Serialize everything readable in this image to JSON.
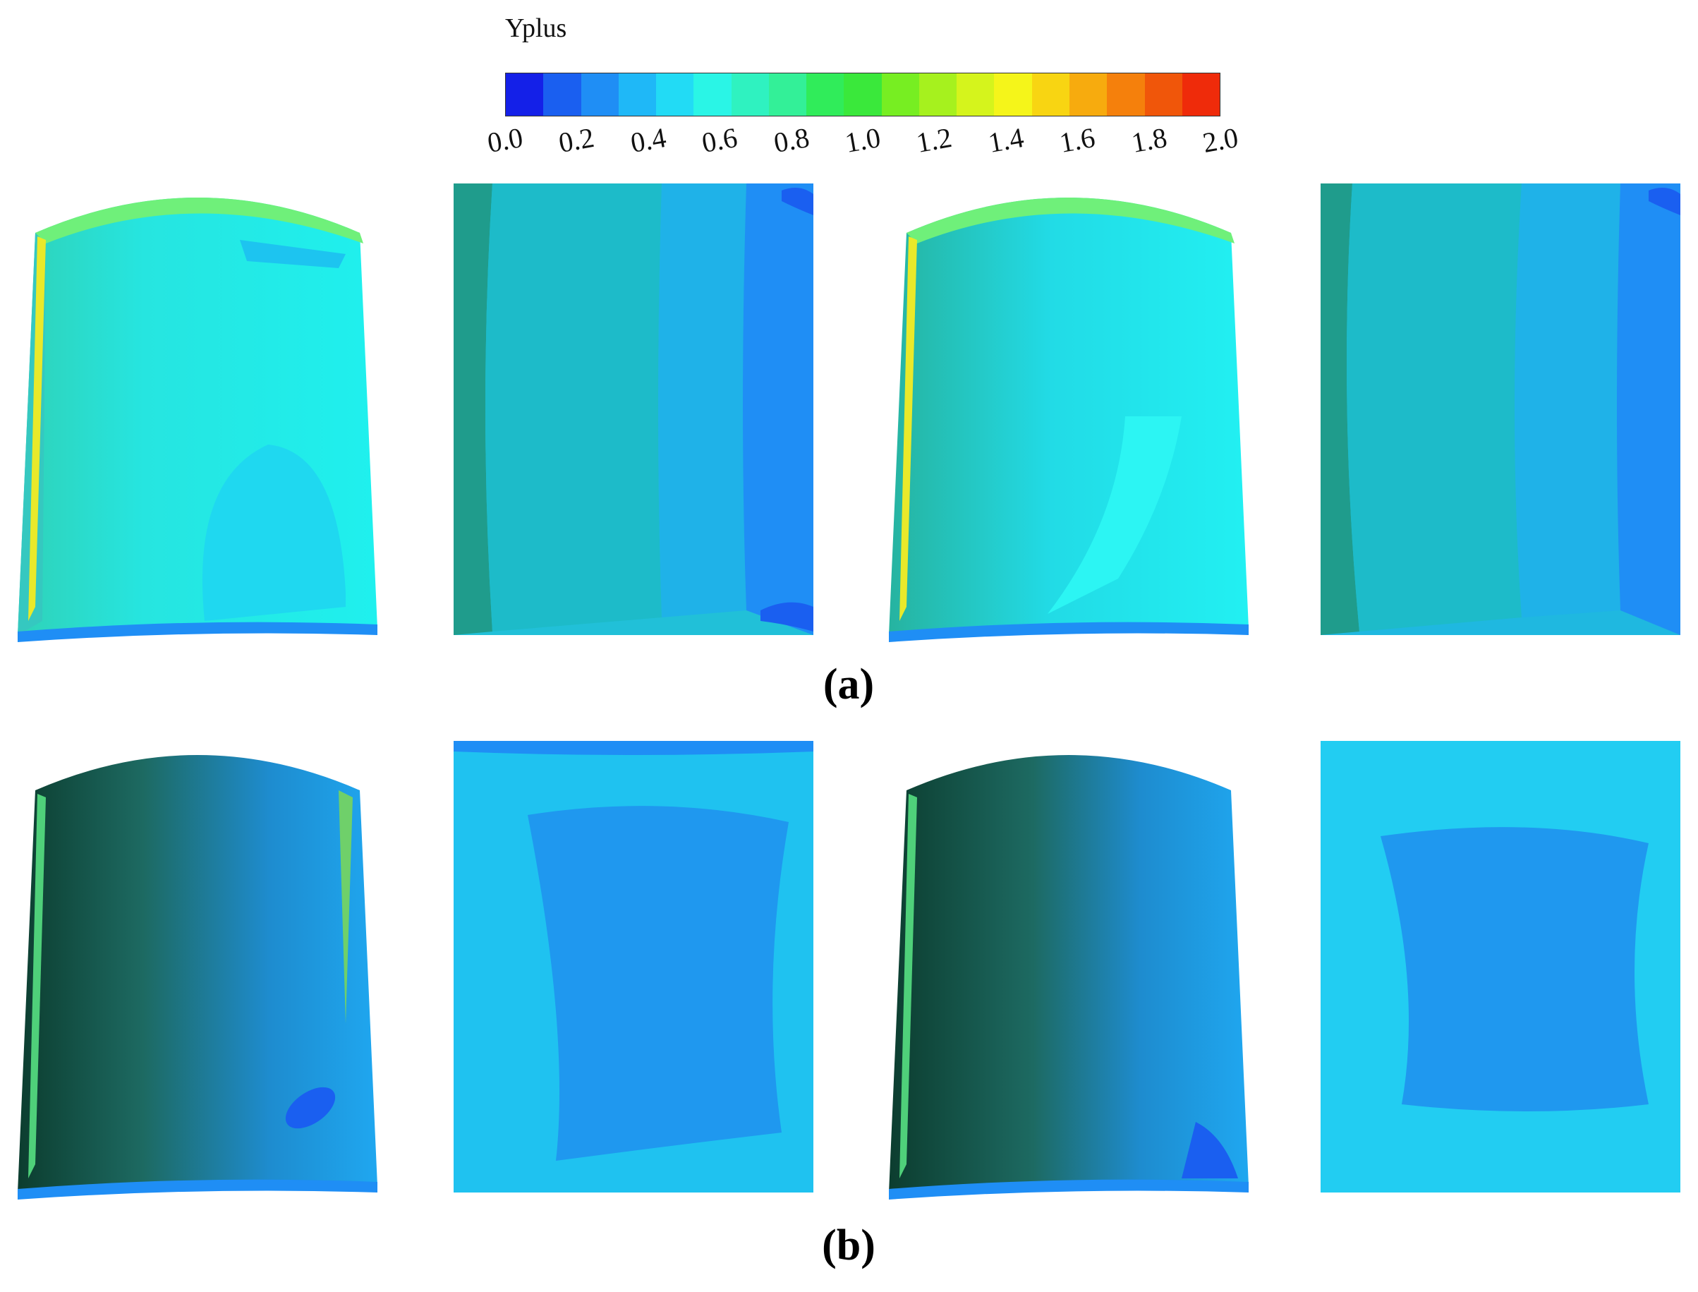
{
  "legend": {
    "title": "Yplus",
    "ticks": [
      "0.0",
      "0.2",
      "0.4",
      "0.6",
      "0.8",
      "1.0",
      "1.2",
      "1.4",
      "1.6",
      "1.8",
      "2.0"
    ],
    "colors": [
      "#1420e8",
      "#1a5ff0",
      "#1f8ef5",
      "#1fb8f7",
      "#22dbf5",
      "#2af5e6",
      "#2ff2c0",
      "#33f098",
      "#30ec5a",
      "#3ae83b",
      "#77ee22",
      "#a6f11e",
      "#d5f41c",
      "#f5f51a",
      "#f8d512",
      "#f7ab0e",
      "#f5800c",
      "#f0560a",
      "#ef2b0a"
    ]
  },
  "captions": {
    "a": "(a)",
    "b": "(b)"
  }
}
